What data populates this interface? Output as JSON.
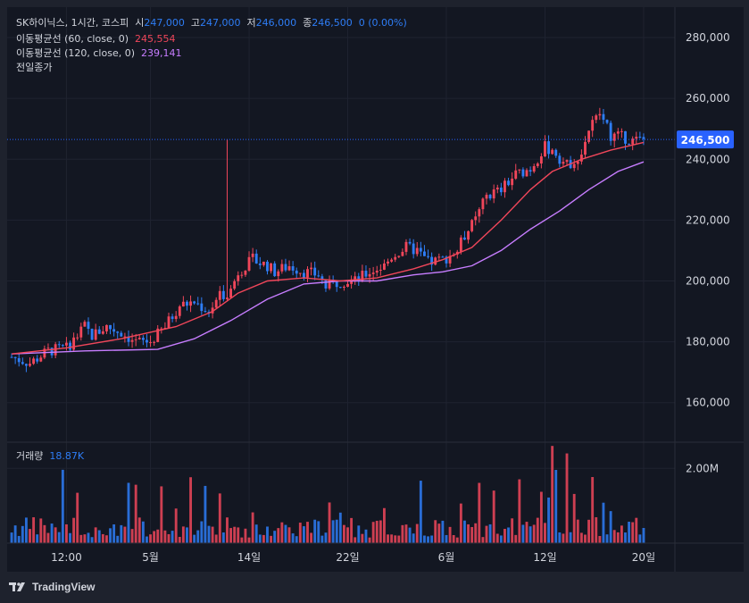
{
  "legend": {
    "symbol": "SK하이닉스, 1시간, 코스피",
    "open_label": "시",
    "open_value": "247,000",
    "high_label": "고",
    "high_value": "247,000",
    "low_label": "저",
    "low_value": "246,000",
    "close_label": "종",
    "close_value": "246,500",
    "change": "0 (0.00%)",
    "ma60_label": "이동평균선 (60, close, 0)",
    "ma60_value": "245,554",
    "ma120_label": "이동평균선 (120, close, 0)",
    "ma120_value": "239,141",
    "prev_close_label": "전일종가",
    "volume_label": "거래량",
    "volume_value": "18.87K"
  },
  "logo": {
    "text": "TradingView"
  },
  "colors": {
    "background": "#131722",
    "up": "#f0465a",
    "down": "#2e7df6",
    "ma60": "#f0465a",
    "ma120": "#c77dff",
    "price_tag": "#2962ff"
  },
  "chart_data": {
    "type": "candlestick",
    "title": "SK하이닉스, 1시간, 코스피",
    "price_axis": {
      "ticks": [
        280000,
        260000,
        240000,
        220000,
        200000,
        180000,
        160000
      ],
      "tick_labels": [
        "280,000",
        "260,000",
        "240,000",
        "220,000",
        "200,000",
        "180,000",
        "160,000"
      ],
      "range": [
        147000,
        290000
      ]
    },
    "volume_axis": {
      "tick": 2000000,
      "tick_label": "2.00M",
      "range": [
        0,
        2700000
      ]
    },
    "time_axis": {
      "labels": [
        "12:00",
        "5월",
        "14일",
        "22일",
        "6월",
        "12일",
        "20일"
      ],
      "label_index": [
        15,
        38,
        65,
        92,
        119,
        146,
        173
      ]
    },
    "last_price": 246500,
    "last_price_label": "246,500",
    "close_path": [
      [
        0,
        175000
      ],
      [
        5,
        173000
      ],
      [
        10,
        177000
      ],
      [
        15,
        178000
      ],
      [
        18,
        182000
      ],
      [
        20,
        185000
      ],
      [
        22,
        182000
      ],
      [
        26,
        185000
      ],
      [
        30,
        183000
      ],
      [
        34,
        180000
      ],
      [
        38,
        180000
      ],
      [
        42,
        185000
      ],
      [
        46,
        192000
      ],
      [
        50,
        193000
      ],
      [
        54,
        190000
      ],
      [
        57,
        195000
      ],
      [
        60,
        197000
      ],
      [
        62,
        203000
      ],
      [
        66,
        207000
      ],
      [
        70,
        205000
      ],
      [
        72,
        203000
      ],
      [
        76,
        205000
      ],
      [
        80,
        203000
      ],
      [
        84,
        202000
      ],
      [
        86,
        198000
      ],
      [
        90,
        200000
      ],
      [
        94,
        200000
      ],
      [
        98,
        203000
      ],
      [
        102,
        205000
      ],
      [
        104,
        208000
      ],
      [
        108,
        211000
      ],
      [
        111,
        210000
      ],
      [
        114,
        206000
      ],
      [
        118,
        207000
      ],
      [
        122,
        210000
      ],
      [
        124,
        215000
      ],
      [
        127,
        220000
      ],
      [
        130,
        228000
      ],
      [
        134,
        230000
      ],
      [
        138,
        235000
      ],
      [
        142,
        237000
      ],
      [
        146,
        244000
      ],
      [
        148,
        243000
      ],
      [
        152,
        238000
      ],
      [
        156,
        242000
      ],
      [
        158,
        250000
      ],
      [
        161,
        255000
      ],
      [
        164,
        248000
      ],
      [
        168,
        247000
      ],
      [
        170,
        246000
      ],
      [
        173,
        246500
      ]
    ],
    "spike": {
      "index": 59,
      "high": 246500
    },
    "ma60_path": [
      [
        0,
        176000
      ],
      [
        15,
        178000
      ],
      [
        30,
        181000
      ],
      [
        45,
        185000
      ],
      [
        55,
        190000
      ],
      [
        62,
        196000
      ],
      [
        70,
        200000
      ],
      [
        80,
        201000
      ],
      [
        90,
        200000
      ],
      [
        100,
        201000
      ],
      [
        110,
        204000
      ],
      [
        118,
        207000
      ],
      [
        126,
        211000
      ],
      [
        134,
        220000
      ],
      [
        142,
        230000
      ],
      [
        148,
        236000
      ],
      [
        156,
        240000
      ],
      [
        164,
        243000
      ],
      [
        173,
        245554
      ]
    ],
    "ma120_path": [
      [
        0,
        176000
      ],
      [
        20,
        177000
      ],
      [
        40,
        177500
      ],
      [
        50,
        181000
      ],
      [
        60,
        187000
      ],
      [
        70,
        194000
      ],
      [
        80,
        199000
      ],
      [
        90,
        200000
      ],
      [
        100,
        200000
      ],
      [
        110,
        202000
      ],
      [
        118,
        203000
      ],
      [
        126,
        205000
      ],
      [
        134,
        210000
      ],
      [
        142,
        217000
      ],
      [
        150,
        223000
      ],
      [
        158,
        230000
      ],
      [
        166,
        236000
      ],
      [
        173,
        239141
      ]
    ]
  }
}
